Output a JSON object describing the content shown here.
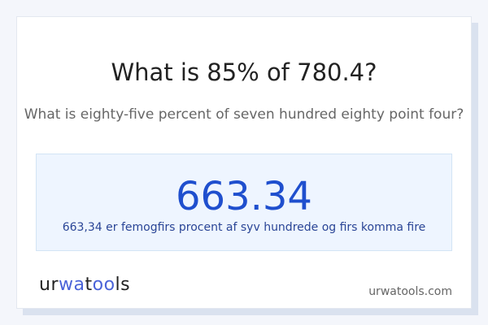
{
  "question": "What is 85% of 780.4?",
  "question_words": "What is eighty-five percent of seven hundred eighty point four?",
  "answer": "663.34",
  "answer_words": "663,34 er femogfirs procent af syv hundrede og firs komma fire",
  "logo": {
    "part1": "ur",
    "part2": "wa",
    "part3": "t",
    "part4": "oo",
    "part5": "ls"
  },
  "site": "urwatools.com",
  "colors": {
    "accent": "#1f4fce",
    "box_bg": "#eef5ff"
  }
}
